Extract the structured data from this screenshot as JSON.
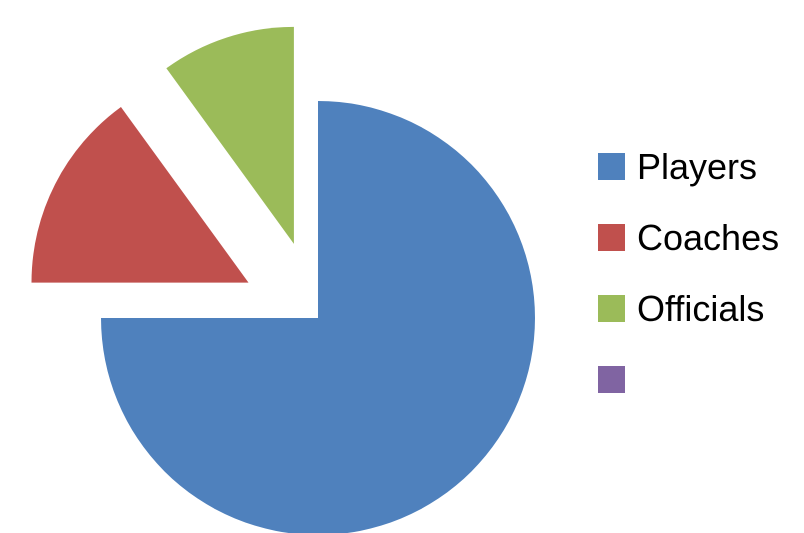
{
  "chart_data": {
    "type": "pie",
    "title": "",
    "legend_position": "right",
    "exploded": true,
    "slices": [
      {
        "label": "Players",
        "value": 75,
        "color": "#4F81BD"
      },
      {
        "label": "Coaches",
        "value": 15,
        "color": "#C0504D"
      },
      {
        "label": "Officials",
        "value": 10,
        "color": "#9BBB59"
      },
      {
        "label": "",
        "value": 0,
        "color": "#8064A2"
      }
    ]
  }
}
